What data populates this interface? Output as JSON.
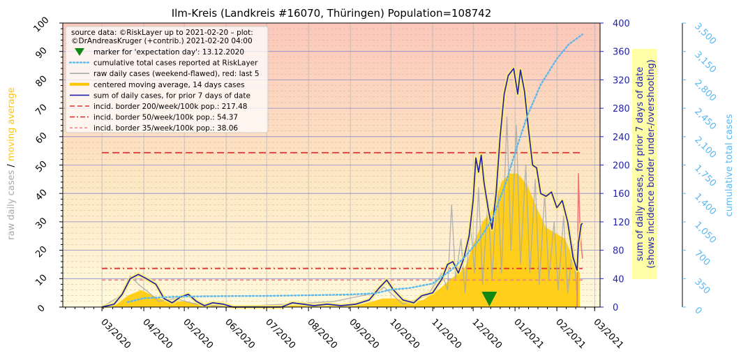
{
  "chart_data": {
    "type": "line",
    "title": "Ilm-Kreis (Landkreis #16070, Thüringen) Population=108742",
    "source_lines": [
      "source data: ©RiskLayer up to 2021-02-20 – plot:",
      "©DrAndreasKruger (+contrib.) 2021-02-20 04:00"
    ],
    "left_axis": {
      "label_parts": [
        "raw daily cases",
        "/",
        "moving average"
      ],
      "label_colors": [
        "#aaaaaa",
        "#000000",
        "#ffc600"
      ],
      "ylim": [
        0,
        100
      ],
      "ticks": [
        "0",
        "10",
        "20",
        "30",
        "40",
        "50",
        "60",
        "70",
        "80",
        "90",
        "100"
      ]
    },
    "right_axis_1": {
      "label_lines": [
        "sum of daily cases, for prior 7 days of date",
        "(shows incidence border under-/overshooting)"
      ],
      "color": "#2222aa",
      "ylim": [
        0,
        400
      ],
      "ticks": [
        "0",
        "40",
        "80",
        "120",
        "160",
        "200",
        "240",
        "280",
        "320",
        "360",
        "400"
      ]
    },
    "right_axis_2": {
      "label": "cumulative total cases",
      "color": "#5bb8ee",
      "ylim": [
        0,
        3500
      ],
      "ticks": [
        "0",
        "350",
        "700",
        "1,050",
        "1,400",
        "1,750",
        "2,100",
        "2,450",
        "2,800",
        "3,150",
        "3,500"
      ]
    },
    "x_axis": {
      "range": [
        "2020-02-01",
        "2021-03-05"
      ],
      "ticks": [
        {
          "date": "2020-03-01",
          "label": "03/2020"
        },
        {
          "date": "2020-04-01",
          "label": "04/2020"
        },
        {
          "date": "2020-05-01",
          "label": "05/2020"
        },
        {
          "date": "2020-06-01",
          "label": "06/2020"
        },
        {
          "date": "2020-07-01",
          "label": "07/2020"
        },
        {
          "date": "2020-08-01",
          "label": "08/2020"
        },
        {
          "date": "2020-09-01",
          "label": "09/2020"
        },
        {
          "date": "2020-10-01",
          "label": "10/2020"
        },
        {
          "date": "2020-11-01",
          "label": "11/2020"
        },
        {
          "date": "2020-12-01",
          "label": "12/2020"
        },
        {
          "date": "2021-01-01",
          "label": "01/2021"
        },
        {
          "date": "2021-02-01",
          "label": "02/2021"
        },
        {
          "date": "2021-03-01",
          "label": "03/2021"
        }
      ]
    },
    "legend": {
      "placement": "top-left",
      "entries": [
        {
          "label": "marker for 'expectation day': 13.12.2020",
          "kind": "triangle",
          "color": "#118811"
        },
        {
          "label": "cumulative total cases reported at RiskLayer",
          "kind": "dotted",
          "color": "#5bb8ee"
        },
        {
          "label": "raw daily cases (weekend-flawed), red: last 5",
          "kind": "line",
          "color": "#aaaaaa"
        },
        {
          "label": "centered moving average, 14 days cases",
          "kind": "thick",
          "color": "#ffc600"
        },
        {
          "label": "sum of daily cases, for prior 7 days of date",
          "kind": "line",
          "color": "#2222aa"
        },
        {
          "label": "incid. border 200/week/100k pop.: 217.48",
          "kind": "dashed",
          "color": "#dd3333"
        },
        {
          "label": "incid. border  50/week/100k pop.: 54.37",
          "kind": "dashdot",
          "color": "#dd3333"
        },
        {
          "label": "incid. border  35/week/100k pop.: 38.06",
          "kind": "dashed-light",
          "color": "#ee8888"
        }
      ]
    },
    "expectation_day": "2020-12-13",
    "incidence_borders_weekly_sum": [
      217.48,
      54.37,
      38.06
    ],
    "series": [
      {
        "name": "sum of daily cases, for prior 7 days of date",
        "axis": "right_axis_1",
        "color": "#2222aa",
        "points": [
          [
            "2020-03-01",
            0
          ],
          [
            "2020-03-10",
            4
          ],
          [
            "2020-03-16",
            18
          ],
          [
            "2020-03-22",
            40
          ],
          [
            "2020-03-28",
            46
          ],
          [
            "2020-04-03",
            40
          ],
          [
            "2020-04-10",
            32
          ],
          [
            "2020-04-16",
            12
          ],
          [
            "2020-04-22",
            6
          ],
          [
            "2020-04-28",
            14
          ],
          [
            "2020-05-04",
            18
          ],
          [
            "2020-05-10",
            8
          ],
          [
            "2020-05-16",
            2
          ],
          [
            "2020-05-22",
            6
          ],
          [
            "2020-05-30",
            4
          ],
          [
            "2020-06-06",
            0
          ],
          [
            "2020-06-20",
            0
          ],
          [
            "2020-07-05",
            0
          ],
          [
            "2020-07-12",
            0
          ],
          [
            "2020-07-20",
            6
          ],
          [
            "2020-07-28",
            4
          ],
          [
            "2020-08-05",
            2
          ],
          [
            "2020-08-15",
            4
          ],
          [
            "2020-08-25",
            2
          ],
          [
            "2020-09-05",
            4
          ],
          [
            "2020-09-15",
            10
          ],
          [
            "2020-09-22",
            26
          ],
          [
            "2020-09-28",
            38
          ],
          [
            "2020-10-03",
            24
          ],
          [
            "2020-10-10",
            10
          ],
          [
            "2020-10-18",
            6
          ],
          [
            "2020-10-24",
            16
          ],
          [
            "2020-11-01",
            20
          ],
          [
            "2020-11-08",
            40
          ],
          [
            "2020-11-12",
            60
          ],
          [
            "2020-11-16",
            64
          ],
          [
            "2020-11-20",
            48
          ],
          [
            "2020-11-24",
            68
          ],
          [
            "2020-11-28",
            100
          ],
          [
            "2020-12-01",
            150
          ],
          [
            "2020-12-03",
            210
          ],
          [
            "2020-12-05",
            190
          ],
          [
            "2020-12-07",
            214
          ],
          [
            "2020-12-09",
            176
          ],
          [
            "2020-12-12",
            140
          ],
          [
            "2020-12-15",
            110
          ],
          [
            "2020-12-18",
            160
          ],
          [
            "2020-12-21",
            240
          ],
          [
            "2020-12-24",
            300
          ],
          [
            "2020-12-27",
            326
          ],
          [
            "2020-12-31",
            336
          ],
          [
            "2021-01-03",
            300
          ],
          [
            "2021-01-05",
            334
          ],
          [
            "2021-01-08",
            304
          ],
          [
            "2021-01-11",
            250
          ],
          [
            "2021-01-14",
            200
          ],
          [
            "2021-01-17",
            196
          ],
          [
            "2021-01-20",
            160
          ],
          [
            "2021-01-24",
            156
          ],
          [
            "2021-01-28",
            162
          ],
          [
            "2021-02-01",
            140
          ],
          [
            "2021-02-05",
            150
          ],
          [
            "2021-02-09",
            120
          ],
          [
            "2021-02-13",
            70
          ],
          [
            "2021-02-16",
            52
          ],
          [
            "2021-02-17",
            90
          ],
          [
            "2021-02-19",
            116
          ],
          [
            "2021-02-20",
            118
          ]
        ]
      },
      {
        "name": "centered moving average, 14 days cases",
        "axis": "left_axis",
        "color": "#ffc600",
        "points": [
          [
            "2020-03-01",
            0
          ],
          [
            "2020-03-12",
            1
          ],
          [
            "2020-03-20",
            4
          ],
          [
            "2020-03-30",
            6
          ],
          [
            "2020-04-08",
            4
          ],
          [
            "2020-04-18",
            2
          ],
          [
            "2020-05-01",
            2
          ],
          [
            "2020-05-15",
            1
          ],
          [
            "2020-06-01",
            0.5
          ],
          [
            "2020-07-01",
            0.3
          ],
          [
            "2020-07-20",
            0.6
          ],
          [
            "2020-08-15",
            0.5
          ],
          [
            "2020-09-10",
            1
          ],
          [
            "2020-09-25",
            3
          ],
          [
            "2020-10-05",
            3
          ],
          [
            "2020-10-15",
            1.5
          ],
          [
            "2020-10-25",
            2.5
          ],
          [
            "2020-11-05",
            6
          ],
          [
            "2020-11-15",
            10
          ],
          [
            "2020-11-25",
            14
          ],
          [
            "2020-12-01",
            22
          ],
          [
            "2020-12-08",
            30
          ],
          [
            "2020-12-15",
            34
          ],
          [
            "2020-12-22",
            44
          ],
          [
            "2020-12-28",
            47
          ],
          [
            "2021-01-03",
            47
          ],
          [
            "2021-01-10",
            43
          ],
          [
            "2021-01-17",
            35
          ],
          [
            "2021-01-24",
            28
          ],
          [
            "2021-01-31",
            26
          ],
          [
            "2021-02-07",
            24
          ],
          [
            "2021-02-13",
            17
          ],
          [
            "2021-02-18",
            12
          ]
        ]
      },
      {
        "name": "raw daily cases (weekend-flawed), red: last 5",
        "axis": "left_axis",
        "color": "#aaaaaa",
        "points": [
          [
            "2020-03-01",
            0
          ],
          [
            "2020-03-15",
            4
          ],
          [
            "2020-03-22",
            11
          ],
          [
            "2020-03-28",
            8
          ],
          [
            "2020-04-05",
            5
          ],
          [
            "2020-04-12",
            2
          ],
          [
            "2020-04-24",
            3
          ],
          [
            "2020-05-10",
            1
          ],
          [
            "2020-06-01",
            0
          ],
          [
            "2020-07-15",
            1
          ],
          [
            "2020-08-20",
            2
          ],
          [
            "2020-09-20",
            5
          ],
          [
            "2020-09-26",
            7
          ],
          [
            "2020-10-10",
            1
          ],
          [
            "2020-10-28",
            4
          ],
          [
            "2020-11-08",
            12
          ],
          [
            "2020-11-12",
            6
          ],
          [
            "2020-11-15",
            36
          ],
          [
            "2020-11-18",
            10
          ],
          [
            "2020-11-22",
            24
          ],
          [
            "2020-11-25",
            5
          ],
          [
            "2020-11-29",
            30
          ],
          [
            "2020-12-02",
            12
          ],
          [
            "2020-12-05",
            42
          ],
          [
            "2020-12-08",
            8
          ],
          [
            "2020-12-12",
            38
          ],
          [
            "2020-12-15",
            10
          ],
          [
            "2020-12-19",
            44
          ],
          [
            "2020-12-22",
            12
          ],
          [
            "2020-12-26",
            67
          ],
          [
            "2020-12-29",
            20
          ],
          [
            "2021-01-02",
            64
          ],
          [
            "2021-01-05",
            15
          ],
          [
            "2021-01-09",
            50
          ],
          [
            "2021-01-12",
            12
          ],
          [
            "2021-01-16",
            45
          ],
          [
            "2021-01-19",
            8
          ],
          [
            "2021-01-23",
            40
          ],
          [
            "2021-01-26",
            10
          ],
          [
            "2021-01-30",
            30
          ],
          [
            "2021-02-02",
            6
          ],
          [
            "2021-02-06",
            32
          ],
          [
            "2021-02-09",
            5
          ],
          [
            "2021-02-13",
            22
          ],
          [
            "2021-02-16",
            4
          ]
        ]
      },
      {
        "name": "raw daily cases, last 5 (red)",
        "axis": "left_axis",
        "color": "#ee7777",
        "points": [
          [
            "2021-02-16",
            0
          ],
          [
            "2021-02-17",
            47
          ],
          [
            "2021-02-18",
            30
          ],
          [
            "2021-02-19",
            22
          ],
          [
            "2021-02-20",
            17
          ]
        ]
      },
      {
        "name": "cumulative total cases reported at RiskLayer",
        "axis": "right_axis_2",
        "color": "#5bb8ee",
        "points": [
          [
            "2020-03-20",
            60
          ],
          [
            "2020-04-01",
            110
          ],
          [
            "2020-04-15",
            120
          ],
          [
            "2020-05-01",
            130
          ],
          [
            "2020-06-01",
            135
          ],
          [
            "2020-07-01",
            138
          ],
          [
            "2020-08-01",
            145
          ],
          [
            "2020-09-01",
            155
          ],
          [
            "2020-09-20",
            170
          ],
          [
            "2020-10-01",
            215
          ],
          [
            "2020-10-15",
            235
          ],
          [
            "2020-11-01",
            290
          ],
          [
            "2020-11-15",
            460
          ],
          [
            "2020-11-25",
            620
          ],
          [
            "2020-12-05",
            820
          ],
          [
            "2020-12-15",
            1080
          ],
          [
            "2020-12-25",
            1520
          ],
          [
            "2021-01-01",
            1900
          ],
          [
            "2021-01-10",
            2350
          ],
          [
            "2021-01-20",
            2740
          ],
          [
            "2021-02-01",
            3060
          ],
          [
            "2021-02-10",
            3240
          ],
          [
            "2021-02-20",
            3360
          ]
        ]
      }
    ]
  }
}
